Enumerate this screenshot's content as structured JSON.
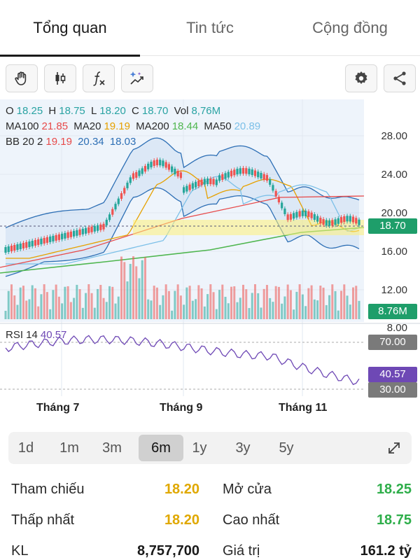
{
  "tabs": [
    {
      "label": "Tổng quan",
      "active": true
    },
    {
      "label": "Tin tức",
      "active": false
    },
    {
      "label": "Cộng đồng",
      "active": false
    }
  ],
  "toolbar": {
    "icons": [
      "hand-icon",
      "candlestick-icon",
      "function-icon",
      "sparkle-drawing-icon",
      "settings-icon",
      "share-icon"
    ],
    "fx_label": "f"
  },
  "ohlc": {
    "o_label": "O",
    "o": "18.25",
    "h_label": "H",
    "h": "18.75",
    "l_label": "L",
    "l": "18.20",
    "c_label": "C",
    "c": "18.70",
    "vol_label": "Vol",
    "vol": "8,76M"
  },
  "ma": {
    "ma100_label": "MA100",
    "ma100": "21.85",
    "ma20_label": "MA20",
    "ma20": "19.19",
    "ma200_label": "MA200",
    "ma200": "18.44",
    "ma50_label": "MA50",
    "ma50": "20.89"
  },
  "bb": {
    "label": "BB 20 2",
    "v1": "19.19",
    "v2": "20.34",
    "v3": "18.03"
  },
  "rsi": {
    "label": "RSI 14",
    "value": "40.57"
  },
  "price_axis": [
    "28.00",
    "24.00",
    "20.00",
    "16.00",
    "12.00"
  ],
  "rsi_axis_top": "8.00",
  "tags": {
    "price": "18.70",
    "volume": "8.76M",
    "rsi_upper": "70.00",
    "rsi_value": "40.57",
    "rsi_lower": "30.00"
  },
  "months": [
    "Tháng 7",
    "Tháng 9",
    "Tháng 11"
  ],
  "periods": [
    {
      "label": "1d",
      "active": false
    },
    {
      "label": "1m",
      "active": false
    },
    {
      "label": "3m",
      "active": false
    },
    {
      "label": "6m",
      "active": true
    },
    {
      "label": "1y",
      "active": false
    },
    {
      "label": "3y",
      "active": false
    },
    {
      "label": "5y",
      "active": false
    }
  ],
  "stats": [
    {
      "k1": "Tham chiếu",
      "v1": "18.20",
      "k2": "Mở cửa",
      "v2": "18.25"
    },
    {
      "k1": "Thấp nhất",
      "v1": "18.20",
      "k2": "Cao nhất",
      "v2": "18.75"
    },
    {
      "k1": "KL",
      "v1": "8,757,700",
      "k2": "Giá trị",
      "v2": "161.2 tỷ"
    }
  ],
  "colors": {
    "up": "#26a69a",
    "down": "#ef5350",
    "ma100": "#e74a4a",
    "ma20": "#e6a100",
    "ma200": "#4fb64f",
    "ma50": "#7cc0e8",
    "bb": "#2d6fb5",
    "rsi": "#6e48b5",
    "price_tag": "#1e9e6a"
  }
}
